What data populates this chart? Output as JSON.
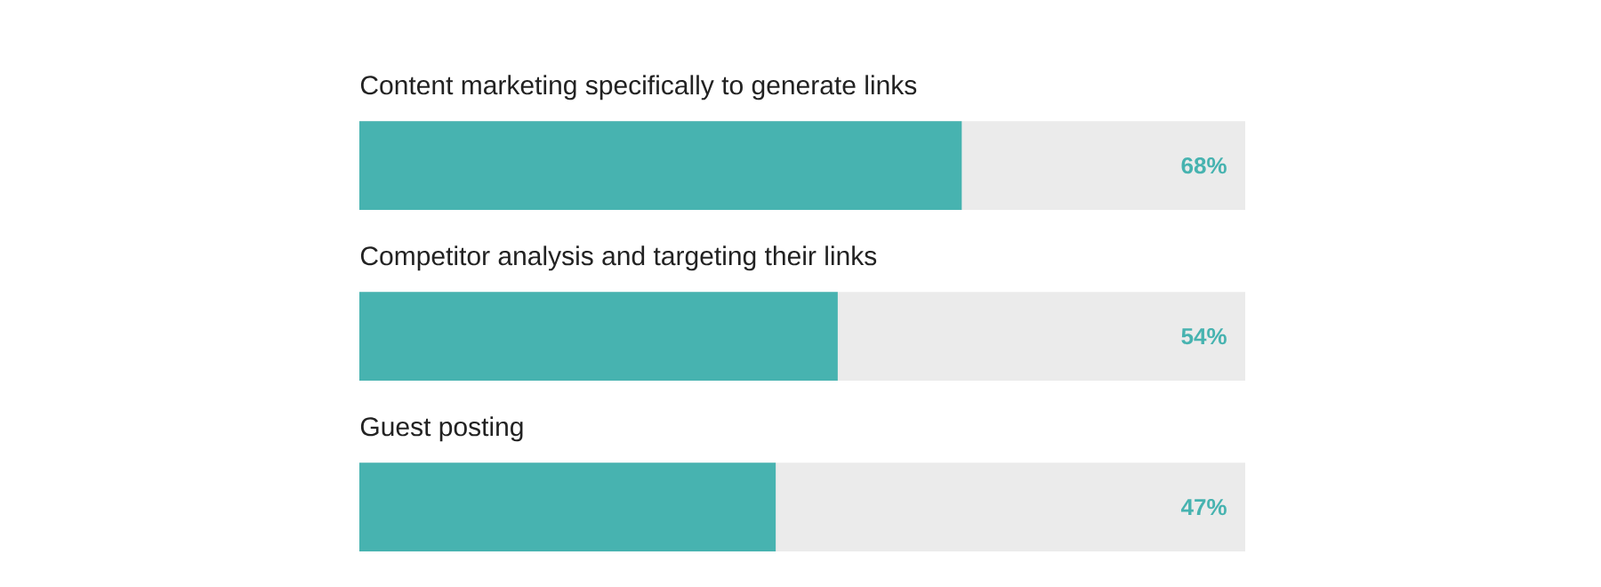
{
  "chart_data": {
    "type": "bar",
    "orientation": "horizontal",
    "categories": [
      "Content marketing specifically to generate links",
      "Competitor analysis and targeting their links",
      "Guest posting"
    ],
    "values": [
      68,
      54,
      47
    ],
    "value_labels": [
      "68%",
      "54%",
      "47%"
    ],
    "color": "#47b3b0",
    "xlim": [
      0,
      100
    ]
  }
}
